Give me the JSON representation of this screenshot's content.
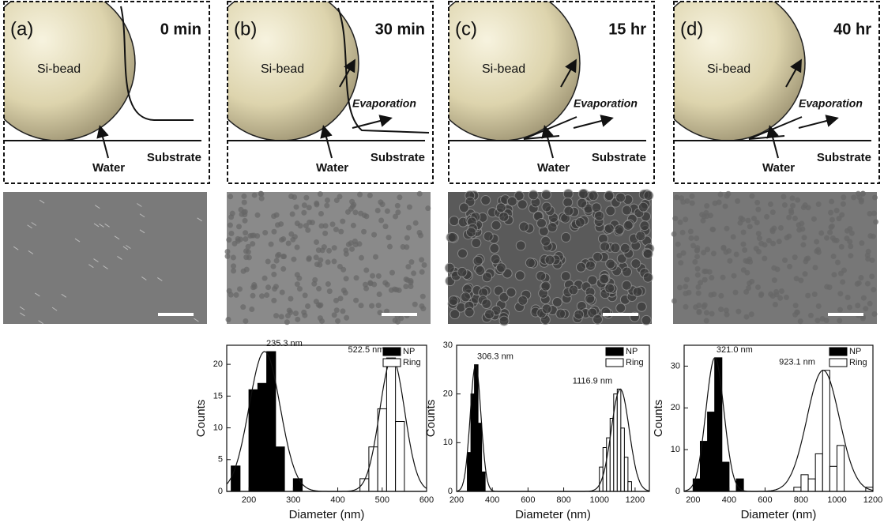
{
  "panels": [
    {
      "label": "(a)",
      "time": "0 min",
      "bead": "Si-bead",
      "water": "Water",
      "substrate": "Substrate"
    },
    {
      "label": "(b)",
      "time": "30 min",
      "bead": "Si-bead",
      "water": "Water",
      "substrate": "Substrate",
      "evaporation": "Evaporation"
    },
    {
      "label": "(c)",
      "time": "15 hr",
      "bead": "Si-bead",
      "water": "Water",
      "substrate": "Substrate",
      "evaporation": "Evaporation"
    },
    {
      "label": "(d)",
      "time": "40 hr",
      "bead": "Si-bead",
      "water": "Water",
      "substrate": "Substrate",
      "evaporation": "Evaporation"
    }
  ],
  "chart_data": [
    {
      "type": "histogram",
      "x_label": "Diameter (nm)",
      "y_label": "Counts",
      "xlim": [
        150,
        600
      ],
      "xticks": [
        200,
        300,
        400,
        500,
        600
      ],
      "ylim": [
        0,
        23
      ],
      "yticks": [
        0,
        5,
        10,
        15,
        20
      ],
      "series": [
        {
          "name": "NP",
          "color": "#000000",
          "bins": [
            160,
            180,
            200,
            220,
            240,
            260,
            280,
            300,
            320
          ],
          "values": [
            4,
            0,
            16,
            17,
            22,
            7,
            0,
            2
          ]
        },
        {
          "name": "Ring",
          "color": "#ffffff",
          "bins": [
            450,
            470,
            490,
            510,
            530,
            550,
            570
          ],
          "values": [
            2,
            7,
            13,
            21,
            11,
            0
          ]
        }
      ],
      "fits": [
        {
          "center": 235.3,
          "sigma": 35,
          "amplitude": 22,
          "label": "235.3 nm"
        },
        {
          "center": 522.5,
          "sigma": 28,
          "amplitude": 21,
          "label": "522.5 nm"
        }
      ]
    },
    {
      "type": "histogram",
      "x_label": "Diameter (nm)",
      "y_label": "Counts",
      "xlim": [
        200,
        1280
      ],
      "xticks": [
        200,
        400,
        600,
        800,
        1000,
        1200
      ],
      "ylim": [
        0,
        30
      ],
      "yticks": [
        0,
        10,
        20,
        30
      ],
      "series": [
        {
          "name": "NP",
          "color": "#000000",
          "bins": [
            260,
            280,
            300,
            320,
            340,
            360
          ],
          "values": [
            8,
            20,
            26,
            14,
            4
          ]
        },
        {
          "name": "Ring",
          "color": "#ffffff",
          "bins": [
            1000,
            1020,
            1040,
            1060,
            1080,
            1100,
            1120,
            1140,
            1160,
            1180
          ],
          "values": [
            5,
            9,
            11,
            15,
            20,
            21,
            13,
            7,
            2
          ]
        }
      ],
      "fits": [
        {
          "center": 306.3,
          "sigma": 30,
          "amplitude": 26,
          "label": "306.3 nm"
        },
        {
          "center": 1116.9,
          "sigma": 50,
          "amplitude": 21,
          "label": "1116.9 nm"
        }
      ]
    },
    {
      "type": "histogram",
      "x_label": "Diameter (nm)",
      "y_label": "Counts",
      "xlim": [
        150,
        1200
      ],
      "xticks": [
        200,
        400,
        600,
        800,
        1000,
        1200
      ],
      "ylim": [
        0,
        35
      ],
      "yticks": [
        0,
        10,
        20,
        30
      ],
      "series": [
        {
          "name": "NP",
          "color": "#000000",
          "bins": [
            200,
            240,
            280,
            320,
            360,
            400,
            440,
            480
          ],
          "values": [
            3,
            12,
            19,
            32,
            7,
            0,
            3
          ]
        },
        {
          "name": "Ring",
          "color": "#ffffff",
          "bins": [
            760,
            800,
            840,
            880,
            920,
            960,
            1000,
            1040,
            1080,
            1120,
            1160,
            1200
          ],
          "values": [
            1,
            4,
            3,
            9,
            29,
            6,
            11,
            0,
            0,
            0,
            1
          ]
        }
      ],
      "fits": [
        {
          "center": 321.0,
          "sigma": 50,
          "amplitude": 32,
          "label": "321.0 nm"
        },
        {
          "center": 923.1,
          "sigma": 90,
          "amplitude": 29,
          "label": "923.1 nm"
        }
      ]
    }
  ]
}
